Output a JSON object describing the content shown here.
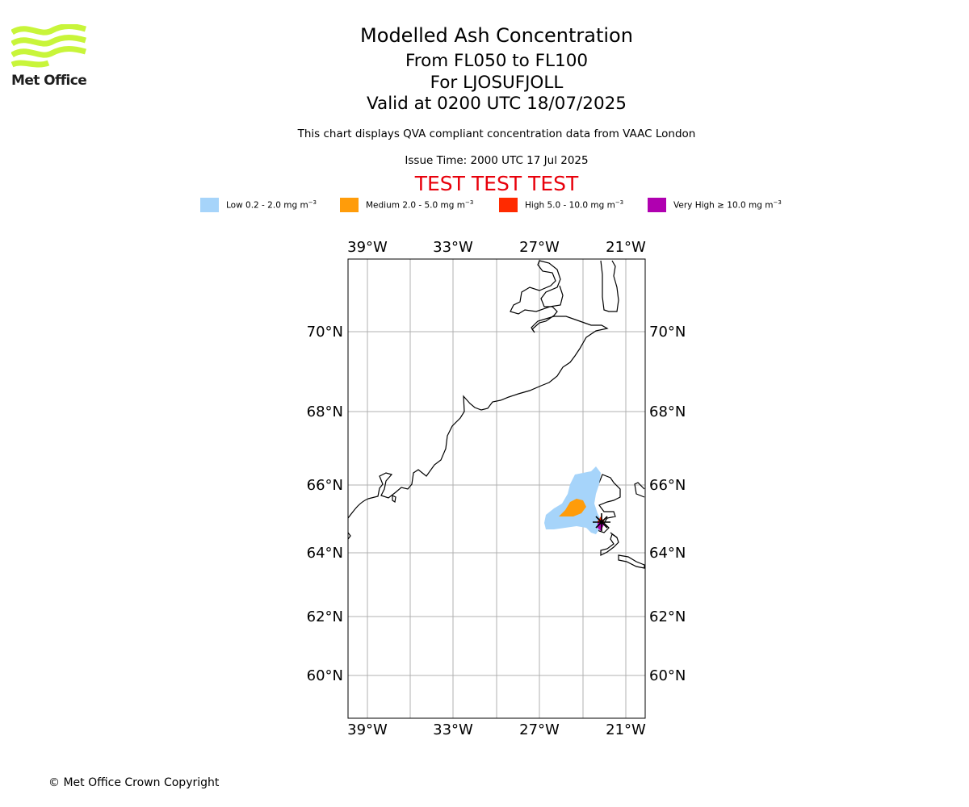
{
  "logo": {
    "text": "Met Office",
    "color": "#c8f53a"
  },
  "title": {
    "main": "Modelled Ash Concentration",
    "levels": "From FL050 to FL100",
    "volcano": "For LJOSUFJOLL",
    "valid": "Valid at 0200 UTC 18/07/2025"
  },
  "subtitle": "This chart displays QVA compliant concentration data from VAAC London",
  "issue_time": "Issue Time: 2000 UTC 17 Jul 2025",
  "test_banner": "TEST TEST TEST",
  "legend": [
    {
      "name": "Low 0.2 - 2.0 mg m",
      "color": "#a6d4fa"
    },
    {
      "name": "Medium 2.0 - 5.0 mg m",
      "color": "#ff9c0a"
    },
    {
      "name": "High 5.0 - 10.0 mg m",
      "color": "#ff2a00"
    },
    {
      "name": "Very High  ≥  10.0 mg m",
      "color": "#b000b0"
    }
  ],
  "legend_unit_exponent": "−3",
  "map": {
    "longitude_labels": [
      "39°W",
      "33°W",
      "27°W",
      "21°W"
    ],
    "latitude_labels": [
      "70°N",
      "68°N",
      "66°N",
      "64°N",
      "62°N",
      "60°N"
    ],
    "gridline_color": "#b0b0b0",
    "coastline_color": "#000000",
    "volcano_marker": "black-cross"
  },
  "copyright": "© Met Office Crown Copyright"
}
